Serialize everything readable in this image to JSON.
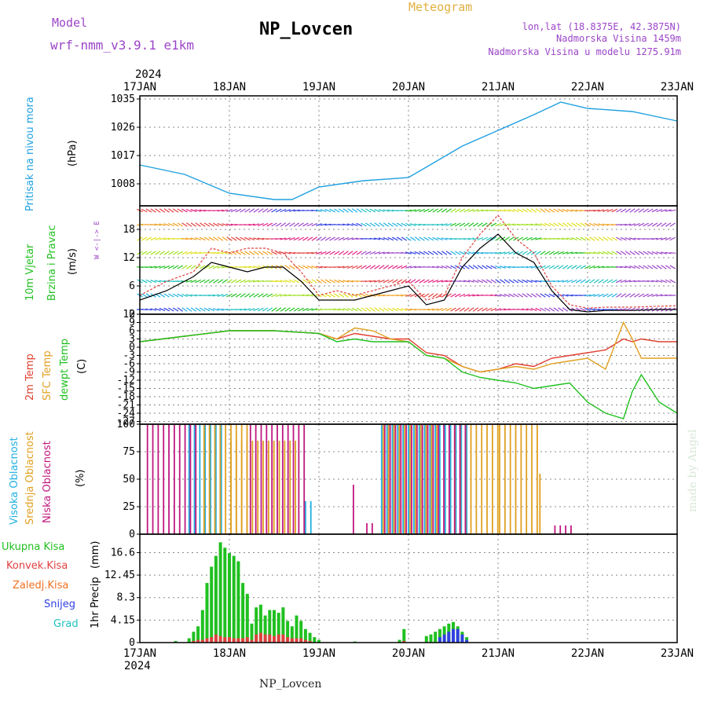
{
  "header": {
    "model_label": "Model",
    "model_name": "wrf-nmm_v3.9.1 e1km",
    "station": "NP_Lovcen",
    "meteogram": "Meteogram",
    "coords": "lon,lat (18.8375E, 42.3875N)",
    "elevation": "Nadmorska Visina 1459m",
    "elevation_model": "Nadmorska Visina u modelu 1275.91m",
    "footer_station": "NP_Lovcen",
    "watermark": "made by Angel"
  },
  "colors": {
    "pressure": "#1fa0e0",
    "temp2m": "#e04030",
    "sfc": "#e0a020",
    "dewpt": "#20c020",
    "wind_speed": "#000000",
    "gust": "#e04040",
    "high_cloud": "#20b0e0",
    "mid_cloud": "#e0a020",
    "low_cloud": "#c01880",
    "total_precip": "#20c020",
    "conv_precip": "#e04040",
    "frz_precip": "#f07020",
    "snow": "#3040e0",
    "graupel": "#20c0c0",
    "purple_text": "#9b45c8"
  },
  "chart_data": [
    {
      "type": "line",
      "panel": "pressure",
      "ylabel": "Pritisak na nivou mora",
      "unit": "(hPa)",
      "ylim": [
        1001,
        1036
      ],
      "yticks": [
        "1008",
        "1017",
        "1026",
        "1035"
      ],
      "ytick_values": [
        1008,
        1017,
        1026,
        1035
      ],
      "xticks": [
        "17JAN",
        "18JAN",
        "19JAN",
        "20JAN",
        "21JAN",
        "22JAN",
        "23JAN"
      ],
      "year": "2024",
      "x_days": [
        0,
        0.5,
        1,
        1.5,
        1.7,
        2,
        2.5,
        3,
        3.3,
        3.6,
        4,
        4.4,
        4.7,
        5,
        5.5,
        6
      ],
      "series": [
        {
          "values": [
            1014,
            1011,
            1005,
            1003,
            1003,
            1007,
            1009,
            1010,
            1015,
            1020,
            1025,
            1030,
            1034,
            1032,
            1031,
            1028
          ]
        }
      ]
    },
    {
      "type": "line",
      "panel": "wind",
      "ylabel": "10m Vjetar Brzina i Pravac",
      "unit": "(m/s)",
      "compass": "W <-|-> E",
      "ylim": [
        0,
        23
      ],
      "yticks": [
        "0",
        "6",
        "12",
        "18"
      ],
      "ytick_values": [
        0,
        6,
        12,
        18
      ],
      "x_days": [
        0,
        0.3,
        0.6,
        0.8,
        1.0,
        1.2,
        1.4,
        1.6,
        1.8,
        2.0,
        2.2,
        2.4,
        2.6,
        2.8,
        3.0,
        3.2,
        3.4,
        3.6,
        3.8,
        4.0,
        4.2,
        4.4,
        4.6,
        4.8,
        5.0,
        5.2,
        5.5,
        5.8,
        6.0
      ],
      "series": [
        {
          "values": [
            3,
            5,
            8,
            11,
            10,
            9,
            10,
            10,
            7,
            3,
            3,
            3,
            4,
            5,
            6,
            2,
            3,
            10,
            14,
            17,
            13,
            11,
            5,
            1,
            0.5,
            0.8,
            0.8,
            1,
            1
          ]
        },
        {
          "values": [
            4,
            7,
            9,
            14,
            13,
            14,
            14,
            13,
            9,
            4,
            5,
            4,
            5,
            6,
            7,
            3,
            4,
            12,
            17,
            21,
            16,
            13,
            6,
            2,
            1.3,
            1.5,
            1.5,
            1.7,
            1.8
          ]
        }
      ]
    },
    {
      "type": "line",
      "panel": "temperature",
      "ylabel": "2m Temp / SFC Temp / dewpt Temp",
      "unit": "(C)",
      "ylim": [
        -28,
        12
      ],
      "yticks": [
        "12",
        "9",
        "6",
        "3",
        "0",
        "-3",
        "-6",
        "-9",
        "-12",
        "-15",
        "-18",
        "-21",
        "-24",
        "-27"
      ],
      "ytick_values": [
        12,
        9,
        6,
        3,
        0,
        -3,
        -6,
        -9,
        -12,
        -15,
        -18,
        -21,
        -24,
        -27
      ],
      "x_days": [
        0,
        0.5,
        1,
        1.5,
        2,
        2.2,
        2.4,
        2.6,
        2.8,
        3,
        3.2,
        3.4,
        3.6,
        3.8,
        4,
        4.2,
        4.4,
        4.6,
        4.8,
        5,
        5.2,
        5.4,
        5.5,
        5.6,
        5.8,
        6
      ],
      "series": [
        {
          "values": [
            2,
            4,
            6,
            6,
            5,
            3,
            5,
            4,
            3,
            3,
            -2,
            -3,
            -7,
            -9,
            -8,
            -6,
            -7,
            -4,
            -3,
            -2,
            -1,
            3,
            2,
            3,
            2,
            2
          ]
        },
        {
          "values": [
            2,
            4,
            6,
            6,
            5,
            3,
            7,
            6,
            3,
            2,
            -3,
            -4,
            -7,
            -9,
            -8,
            -7,
            -8,
            -6,
            -5,
            -4,
            -8,
            9,
            3,
            -4,
            -4,
            -4
          ]
        },
        {
          "values": [
            2,
            4,
            6,
            6,
            5,
            2,
            3,
            2,
            2,
            2,
            -3,
            -4,
            -9,
            -11,
            -12,
            -13,
            -15,
            -14,
            -13,
            -20,
            -24,
            -26,
            -16,
            -10,
            -20,
            -24
          ]
        }
      ]
    },
    {
      "type": "bar",
      "panel": "cloud",
      "ylabel": "Visoka Oblacnost / Srednja Oblacnost / Niska Oblacnost",
      "unit": "(%)",
      "ylim": [
        0,
        100
      ],
      "yticks": [
        "0",
        "25",
        "50",
        "75",
        "100"
      ],
      "ytick_values": [
        0,
        25,
        50,
        75,
        100
      ],
      "series": [
        {
          "name": "Visoka Oblacnost",
          "segments": [
            [
              0.55,
              0.95,
              100
            ],
            [
              1.85,
              1.95,
              30
            ],
            [
              2.7,
              3.3,
              100
            ],
            [
              3.35,
              3.7,
              100
            ]
          ]
        },
        {
          "name": "Srednja Oblacnost",
          "segments": [
            [
              0.7,
              1.2,
              100
            ],
            [
              1.0,
              1.75,
              85
            ],
            [
              2.7,
              3.3,
              100
            ],
            [
              3.5,
              4.0,
              100
            ],
            [
              4.0,
              4.45,
              100
            ],
            [
              4.45,
              4.5,
              55
            ]
          ]
        },
        {
          "name": "Niska Oblacnost",
          "segments": [
            [
              0.05,
              0.6,
              100
            ],
            [
              1.2,
              1.8,
              100
            ],
            [
              2.35,
              2.37,
              45
            ],
            [
              2.5,
              2.6,
              10
            ],
            [
              2.7,
              3.6,
              100
            ],
            [
              4.6,
              4.8,
              8
            ]
          ]
        }
      ]
    },
    {
      "type": "bar",
      "panel": "precip",
      "ylabel": "1hr Precip",
      "unit": "(mm)",
      "ylim": [
        0,
        20
      ],
      "yticks": [
        "0",
        "4.15",
        "8.3",
        "12.45",
        "16.6"
      ],
      "ytick_values": [
        0,
        4.15,
        8.3,
        12.45,
        16.6
      ],
      "legend": [
        "Ukupna Kisa",
        "Konvek.Kisa",
        "Zaledj.Kisa",
        "Snijeg",
        "Grad"
      ],
      "x_days": [
        0.4,
        0.55,
        0.6,
        0.65,
        0.7,
        0.75,
        0.8,
        0.85,
        0.9,
        0.95,
        1.0,
        1.05,
        1.1,
        1.15,
        1.2,
        1.25,
        1.3,
        1.35,
        1.4,
        1.45,
        1.5,
        1.55,
        1.6,
        1.65,
        1.7,
        1.75,
        1.8,
        1.85,
        1.9,
        1.95,
        2.0,
        2.4,
        2.9,
        2.95,
        3.2,
        3.25,
        3.3,
        3.35,
        3.4,
        3.45,
        3.5,
        3.55,
        3.6,
        3.65
      ],
      "series": [
        {
          "name": "Ukupna Kisa",
          "values": [
            0.3,
            0.8,
            2,
            3,
            6,
            11,
            14,
            16,
            18.5,
            17.5,
            16.5,
            16,
            15,
            11,
            9,
            3.5,
            6.5,
            7,
            5,
            6,
            6,
            5.5,
            6.5,
            4,
            3,
            5,
            4,
            2.5,
            1.8,
            1,
            0.5,
            0.2,
            0.5,
            2.5,
            1.2,
            1.5,
            2,
            2.5,
            3,
            3.5,
            3.8,
            3,
            2,
            1
          ]
        },
        {
          "name": "Konvek.Kisa",
          "values": [
            0,
            0,
            0.3,
            0.5,
            0.5,
            0.8,
            1,
            1.5,
            1.2,
            1,
            1,
            0.8,
            0.8,
            0.8,
            1,
            0.5,
            1.5,
            1.8,
            1.5,
            1.5,
            1.2,
            1.5,
            1.5,
            1,
            0.8,
            0.8,
            0.8,
            0.5,
            0.3,
            0,
            0,
            0,
            0,
            0.3,
            0,
            0,
            0,
            0,
            0,
            0,
            0,
            0,
            0,
            0
          ]
        },
        {
          "name": "Snijeg",
          "values": [
            0,
            0,
            0,
            0,
            0,
            0,
            0,
            0,
            0,
            0,
            0,
            0,
            0,
            0,
            0,
            0,
            0,
            0,
            0,
            0,
            0,
            0,
            0,
            0,
            0,
            0,
            0,
            0,
            0,
            0,
            0,
            0,
            0,
            0,
            0,
            0,
            0,
            1,
            1.5,
            2,
            2.5,
            2.5,
            1.5,
            0.5
          ]
        }
      ]
    }
  ]
}
